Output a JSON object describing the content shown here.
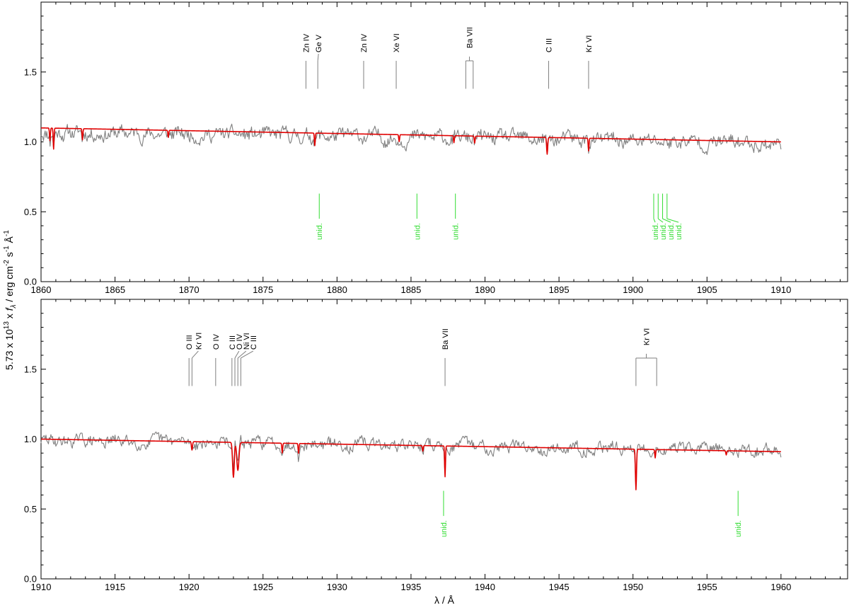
{
  "chart_data": [
    {
      "type": "line",
      "panel": "top",
      "xlim": [
        1860,
        1914.5
      ],
      "ylim": [
        0.0,
        2.0
      ],
      "xticks": [
        1860,
        1865,
        1870,
        1875,
        1880,
        1885,
        1890,
        1895,
        1900,
        1905,
        1910
      ],
      "yticks": [
        0.0,
        0.5,
        1.0,
        1.5
      ],
      "ytick_labels": [
        "0.0",
        "0.5",
        "1.0",
        "1.5"
      ],
      "series": [
        {
          "role": "observed",
          "color": "#808080",
          "x_range": [
            1860,
            1910
          ],
          "level_start": 1.07,
          "level_end": 0.99,
          "noise": 0.06,
          "seed": 11
        },
        {
          "role": "model",
          "color": "#e00000",
          "x": [
            1860,
            1910
          ],
          "y": [
            1.1,
            1.0
          ],
          "absorptions": [
            [
              1860.6,
              0.09,
              0.04
            ],
            [
              1860.85,
              0.15,
              0.04
            ],
            [
              1862.8,
              0.08,
              0.04
            ],
            [
              1878.5,
              0.09,
              0.04
            ],
            [
              1884.2,
              0.05,
              0.04
            ],
            [
              1887.9,
              0.05,
              0.04
            ],
            [
              1889.3,
              0.05,
              0.04
            ],
            [
              1894.2,
              0.12,
              0.05
            ],
            [
              1897.0,
              0.09,
              0.04
            ],
            [
              1868.6,
              0.05,
              0.04
            ]
          ]
        }
      ],
      "ions": [
        {
          "label": "Zn IV",
          "lines": [
            1877.9
          ]
        },
        {
          "label": "Ge V",
          "lines": [
            1878.7
          ]
        },
        {
          "label": "Zn IV",
          "lines": [
            1881.8
          ]
        },
        {
          "label": "Xe VI",
          "lines": [
            1884.0
          ]
        },
        {
          "label": "Ba VII",
          "lines": [
            1888.7,
            1889.2
          ]
        },
        {
          "label": "C III",
          "lines": [
            1894.3
          ]
        },
        {
          "label": "Kr VI",
          "lines": [
            1897.0
          ]
        }
      ],
      "unid": [
        1878.8,
        1885.4,
        1888.0,
        1901.4,
        1901.7,
        1902.0,
        1902.3
      ]
    },
    {
      "type": "line",
      "panel": "bottom",
      "xlim": [
        1910,
        1964.5
      ],
      "ylim": [
        0.0,
        2.0
      ],
      "xticks": [
        1910,
        1915,
        1920,
        1925,
        1930,
        1935,
        1940,
        1945,
        1950,
        1955,
        1960
      ],
      "yticks": [
        0.0,
        0.5,
        1.0,
        1.5
      ],
      "ytick_labels": [
        "0.0",
        "0.5",
        "1.0",
        "1.5"
      ],
      "series": [
        {
          "role": "observed",
          "color": "#808080",
          "x_range": [
            1910,
            1960
          ],
          "level_start": 0.99,
          "level_end": 0.92,
          "noise": 0.05,
          "seed": 29
        },
        {
          "role": "model",
          "color": "#e00000",
          "x": [
            1910,
            1960
          ],
          "y": [
            1.0,
            0.91
          ],
          "absorptions": [
            [
              1920.2,
              0.06,
              0.05
            ],
            [
              1923.0,
              0.25,
              0.08
            ],
            [
              1923.3,
              0.2,
              0.1
            ],
            [
              1926.3,
              0.07,
              0.04
            ],
            [
              1927.4,
              0.07,
              0.04
            ],
            [
              1935.8,
              0.04,
              0.04
            ],
            [
              1937.3,
              0.22,
              0.04
            ],
            [
              1950.2,
              0.29,
              0.05
            ],
            [
              1951.5,
              0.06,
              0.04
            ],
            [
              1956.3,
              0.03,
              0.04
            ]
          ]
        }
      ],
      "ions": [
        {
          "label": "O III",
          "lines": [
            1920.0
          ]
        },
        {
          "label": "Kr VI",
          "lines": [
            1920.2
          ]
        },
        {
          "label": "O IV",
          "lines": [
            1921.8
          ]
        },
        {
          "label": "C III",
          "lines": [
            1922.9
          ]
        },
        {
          "label": "O IV",
          "lines": [
            1923.1
          ]
        },
        {
          "label": "Ni VI",
          "lines": [
            1923.3
          ]
        },
        {
          "label": "C III",
          "lines": [
            1923.5
          ]
        },
        {
          "label": "Ba VII",
          "lines": [
            1937.3
          ]
        },
        {
          "label": "Kr VI",
          "lines": [
            1950.2,
            1951.6
          ]
        }
      ],
      "unid": [
        1937.2,
        1957.1
      ]
    }
  ],
  "unid_label": "unid.",
  "ylabel_parts": {
    "prefix": "5.73 x 10",
    "exp": "13",
    "x": " x ",
    "f": "f",
    "sub": "λ",
    "rest": " / erg cm",
    "e1": "-2",
    "s": " s",
    "e2": "-1",
    "ang": " Å",
    "e3": "-1"
  },
  "xlabel": "λ / Å",
  "colors": {
    "observed": "#808080",
    "model": "#e00000",
    "ion_mark": "#7f7f7f",
    "ion_text": "#000000",
    "unid": "#33dd33",
    "axis": "#000000"
  }
}
